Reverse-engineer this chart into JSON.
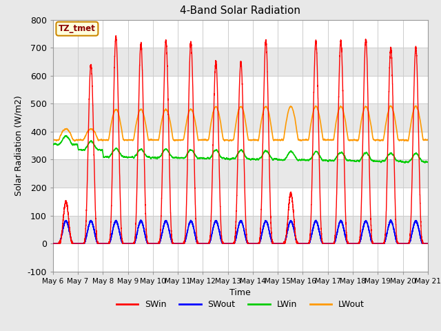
{
  "title": "4-Band Solar Radiation",
  "xlabel": "Time",
  "ylabel": "Solar Radiation (W/m2)",
  "ylim": [
    -100,
    800
  ],
  "xlim": [
    0,
    15
  ],
  "xtick_labels": [
    "May 6",
    "May 7",
    "May 8",
    "May 9",
    "May 10",
    "May 11",
    "May 12",
    "May 13",
    "May 14",
    "May 15",
    "May 16",
    "May 17",
    "May 18",
    "May 19",
    "May 20",
    "May 21"
  ],
  "annotation_text": "TZ_tmet",
  "annotation_box_color": "#ffffdd",
  "annotation_border_color": "#cc8800",
  "colors": {
    "SWin": "#ff0000",
    "SWout": "#0000ff",
    "LWin": "#00cc00",
    "LWout": "#ff9900"
  },
  "legend_labels": [
    "SWin",
    "SWout",
    "LWin",
    "LWout"
  ],
  "plot_bg_color": "#e8e8e8",
  "ytick_major": [
    -100,
    0,
    100,
    200,
    300,
    400,
    500,
    600,
    700,
    800
  ]
}
